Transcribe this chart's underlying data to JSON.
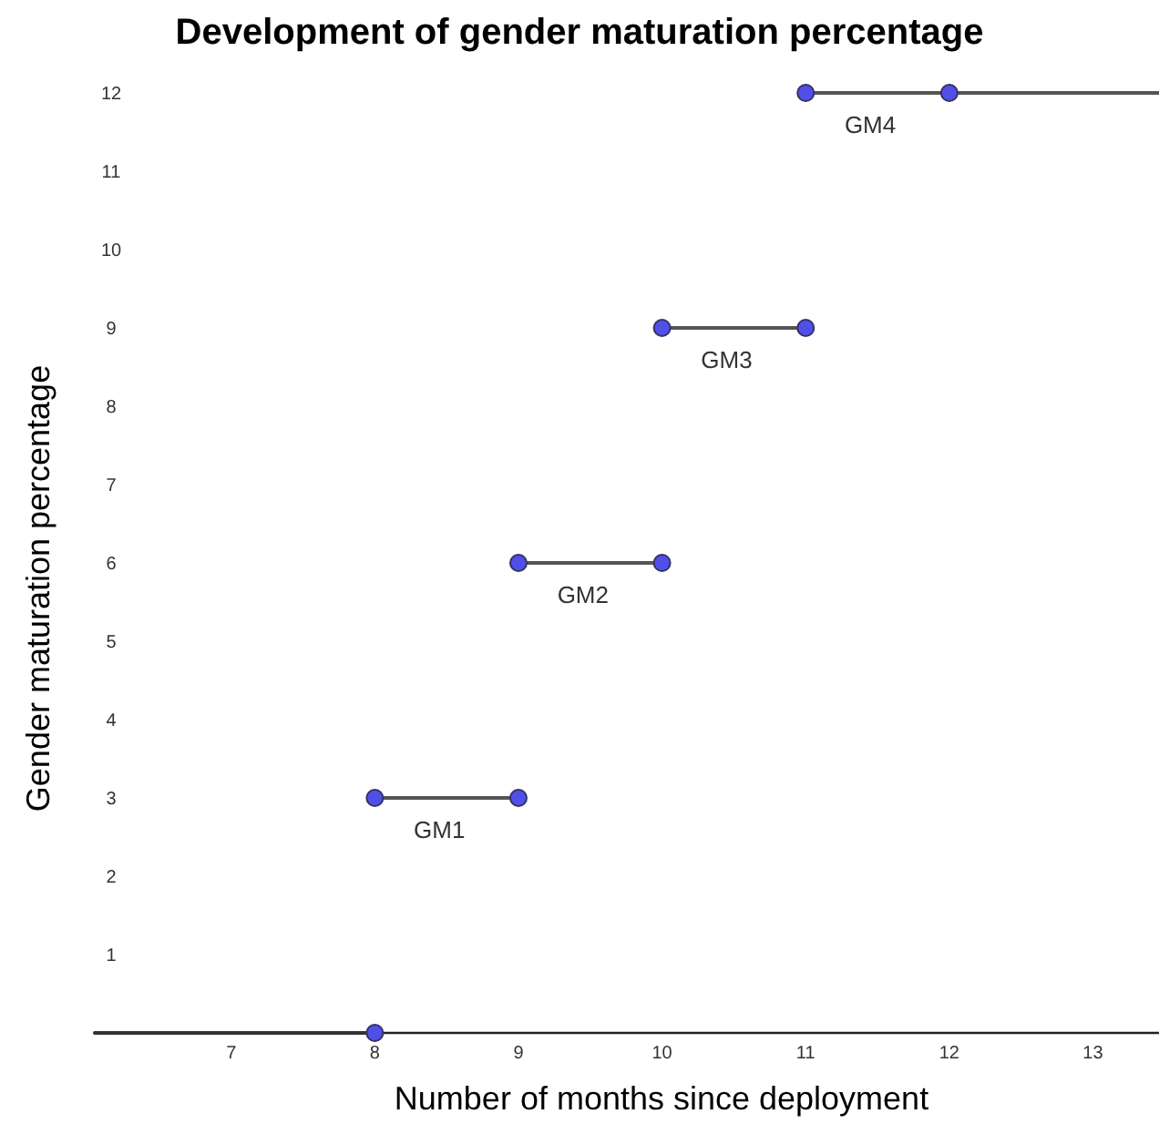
{
  "chart_data": {
    "type": "line",
    "title": "Development of gender maturation percentage",
    "xlabel": "Number of months since deployment",
    "ylabel": "Gender maturation percentage",
    "xlim": [
      6.05,
      13.46
    ],
    "ylim": [
      0,
      12
    ],
    "xticks": [
      7,
      8,
      9,
      10,
      11,
      12,
      13
    ],
    "yticks": [
      1,
      2,
      3,
      4,
      5,
      6,
      7,
      8,
      9,
      10,
      11,
      12
    ],
    "grid": false,
    "series": [
      {
        "color": "#333333",
        "marker": "none",
        "x": [
          6.05,
          8
        ],
        "values": [
          0,
          0
        ]
      },
      {
        "color": "#555555",
        "marker": "none",
        "x": [
          8,
          9
        ],
        "values": [
          3,
          3
        ]
      },
      {
        "color": "#555555",
        "marker": "none",
        "x": [
          9,
          10
        ],
        "values": [
          6,
          6
        ]
      },
      {
        "color": "#555555",
        "marker": "none",
        "x": [
          10,
          11
        ],
        "values": [
          9,
          9
        ]
      },
      {
        "color": "#555555",
        "marker": "none",
        "x": [
          11,
          12,
          13.46
        ],
        "values": [
          12,
          12,
          12
        ]
      },
      {
        "type": "scatter",
        "color": "#5050e8",
        "marker": "circle",
        "x": [
          8,
          8,
          9,
          9,
          10,
          10,
          11,
          11,
          12
        ],
        "values": [
          0,
          3,
          3,
          6,
          6,
          9,
          9,
          12,
          12
        ]
      }
    ],
    "annotations": [
      {
        "text": "GM1",
        "x": 8.5,
        "y": 3
      },
      {
        "text": "GM2",
        "x": 9.5,
        "y": 6
      },
      {
        "text": "GM3",
        "x": 10.5,
        "y": 9
      },
      {
        "text": "GM4",
        "x": 11.5,
        "y": 12
      }
    ]
  }
}
